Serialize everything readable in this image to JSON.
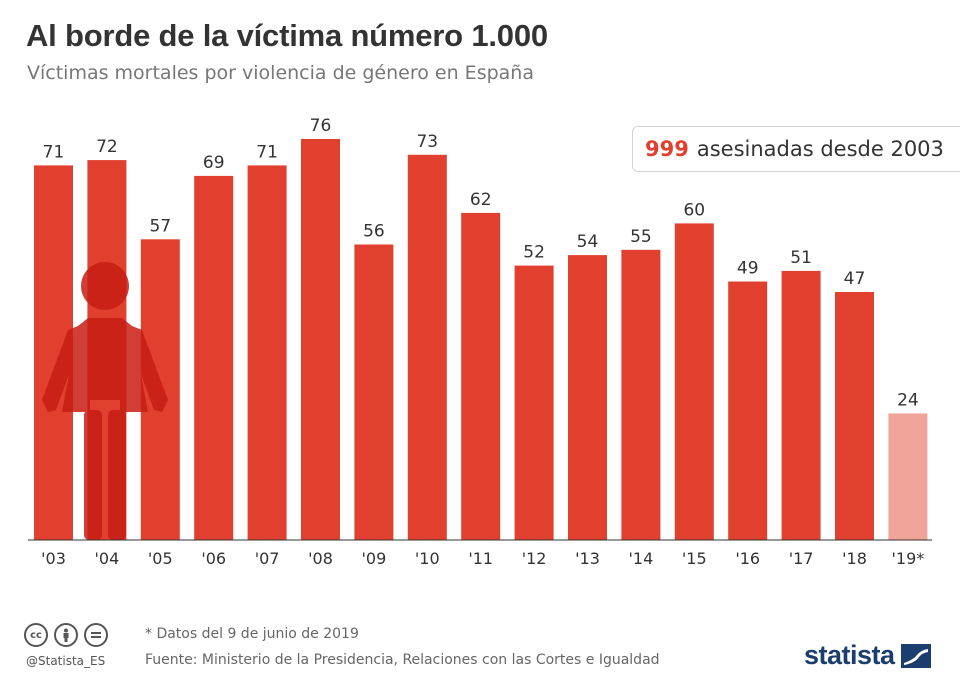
{
  "header": {
    "title": "Al borde de la víctima número 1.000",
    "subtitle": "Víctimas mortales por violencia de género en España"
  },
  "callout": {
    "number": "999",
    "text": "asesinadas desde 2003"
  },
  "footer": {
    "note": "* Datos del 9 de junio de 2019",
    "source": "Fuente: Ministerio de la Presidencia, Relaciones con las Cortes e Igualdad",
    "handle": "@Statista_ES",
    "logo": "statista",
    "license_icons": [
      "cc",
      "by",
      "nd"
    ]
  },
  "colors": {
    "bar": "#e1402e",
    "bar_partial": "#f0a398",
    "figure": "#c81d14"
  },
  "chart_data": {
    "type": "bar",
    "categories": [
      "'03",
      "'04",
      "'05",
      "'06",
      "'07",
      "'08",
      "'09",
      "'10",
      "'11",
      "'12",
      "'13",
      "'14",
      "'15",
      "'16",
      "'17",
      "'18",
      "'19*"
    ],
    "values": [
      71,
      72,
      57,
      69,
      71,
      76,
      56,
      73,
      62,
      52,
      54,
      55,
      60,
      49,
      51,
      47,
      24
    ],
    "partial_index": 16,
    "ylim": [
      0,
      76
    ],
    "grid": false,
    "legend": "none"
  }
}
